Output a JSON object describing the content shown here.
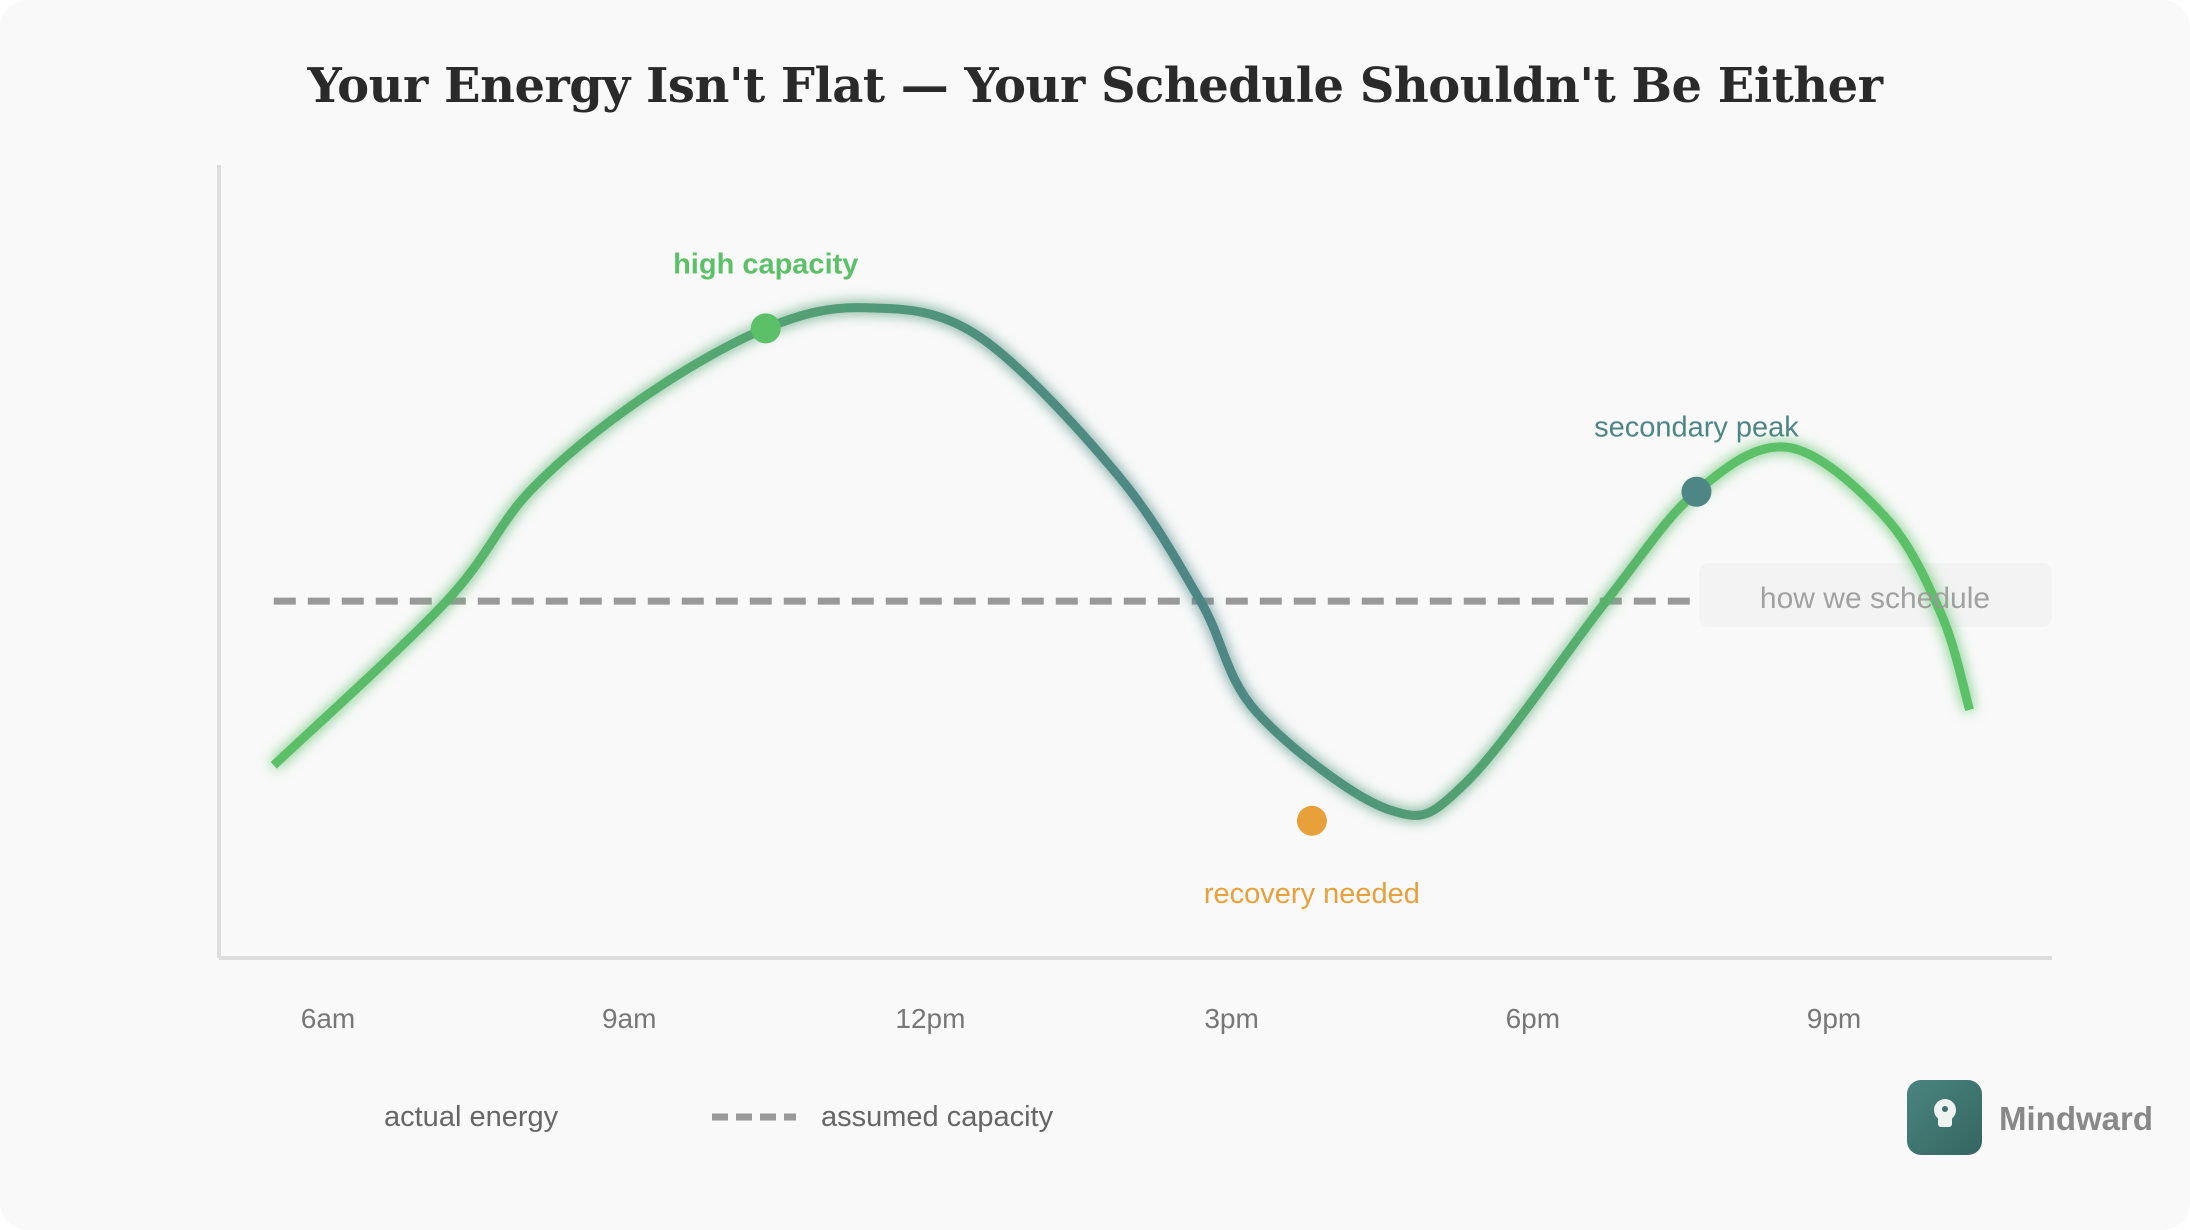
{
  "chart_data": {
    "type": "line",
    "title": "Your Energy Isn't Flat — Your Schedule Shouldn't Be Either",
    "xlabel": "",
    "ylabel": "",
    "x_ticks": [
      "6am",
      "9am",
      "12pm",
      "3pm",
      "6pm",
      "9pm"
    ],
    "x_tick_hours": [
      6,
      9,
      12,
      15,
      18,
      21
    ],
    "ylim": [
      0,
      100
    ],
    "grid": false,
    "series": [
      {
        "name": "actual energy",
        "style": "solid",
        "points": [
          [
            5.46,
            24.3
          ],
          [
            7.18,
            45
          ],
          [
            8.02,
            59
          ],
          [
            9.13,
            70.6
          ],
          [
            10.36,
            79.4
          ],
          [
            11.35,
            82
          ],
          [
            12.47,
            78.5
          ],
          [
            13.86,
            61
          ],
          [
            14.69,
            45
          ],
          [
            15.25,
            31
          ],
          [
            16.57,
            18.7
          ],
          [
            17.34,
            22.2
          ],
          [
            18.73,
            45
          ],
          [
            19.63,
            58.8
          ],
          [
            20.54,
            64.4
          ],
          [
            21.51,
            55.6
          ],
          [
            22.07,
            43.3
          ],
          [
            22.35,
            31.3
          ]
        ]
      },
      {
        "name": "assumed capacity",
        "style": "dashed",
        "color": "#999999",
        "points": [
          [
            5.46,
            45
          ],
          [
            19.6,
            45
          ]
        ]
      }
    ],
    "annotations": [
      {
        "text": "high capacity",
        "x": 10.36,
        "y": 79.4,
        "color": "#5cc068",
        "label_pos": "above"
      },
      {
        "text": "recovery needed",
        "x": 15.8,
        "y": 17.3,
        "color": "#e8a03a",
        "label_pos": "below"
      },
      {
        "text": "secondary peak",
        "x": 19.63,
        "y": 58.8,
        "color": "#4e8585",
        "label_pos": "above"
      },
      {
        "text": "how we schedule",
        "x": 21.0,
        "y": 45.5,
        "color": "#999999",
        "label_pos": "box"
      }
    ],
    "legend": [
      "actual energy",
      "assumed capacity"
    ],
    "legend_position": "bottom-left",
    "colors": {
      "green": "#5cc068",
      "teal": "#4e8585",
      "orange": "#e8a03a",
      "dash": "#999999"
    }
  },
  "brand": {
    "name": "Mindward"
  }
}
